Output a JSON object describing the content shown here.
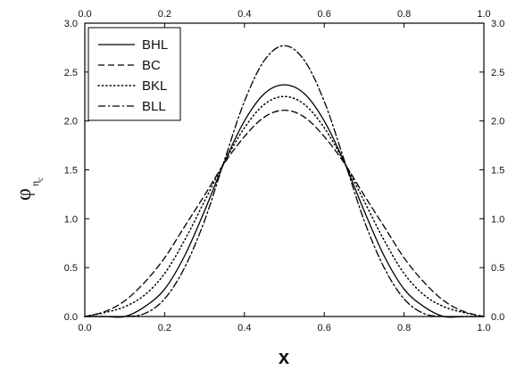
{
  "chart_data": {
    "type": "line",
    "title": "",
    "xlabel": "x",
    "ylabel": {
      "main": "φ",
      "sub": "η",
      "subsub": "c"
    },
    "xlim": [
      0.0,
      1.0
    ],
    "ylim": [
      0.0,
      3.0
    ],
    "xticks": [
      0.0,
      0.2,
      0.4,
      0.6,
      0.8,
      1.0
    ],
    "yticks": [
      0.0,
      0.5,
      1.0,
      1.5,
      2.0,
      2.5,
      3.0
    ],
    "xtick_labels": [
      "0.0",
      "0.2",
      "0.4",
      "0.6",
      "0.8",
      "1.0"
    ],
    "ytick_labels": [
      "0.0",
      "0.5",
      "1.0",
      "1.5",
      "2.0",
      "2.5",
      "3.0"
    ],
    "grid": false,
    "legend": {
      "position": "top-left"
    },
    "series": [
      {
        "name": "BHL",
        "style": "solid",
        "color": "#000000",
        "x": [
          0.0,
          0.05,
          0.1,
          0.15,
          0.2,
          0.25,
          0.3,
          0.35,
          0.4,
          0.45,
          0.5,
          0.55,
          0.6,
          0.65,
          0.7,
          0.75,
          0.8,
          0.85,
          0.9,
          0.95,
          1.0
        ],
        "y": [
          0.0,
          0.0,
          0.0,
          0.1,
          0.28,
          0.62,
          1.08,
          1.58,
          2.0,
          2.28,
          2.37,
          2.28,
          2.0,
          1.58,
          1.08,
          0.62,
          0.28,
          0.1,
          0.0,
          0.0,
          0.0
        ]
      },
      {
        "name": "BC",
        "style": "dashed",
        "color": "#000000",
        "x": [
          0.0,
          0.05,
          0.1,
          0.15,
          0.2,
          0.25,
          0.3,
          0.35,
          0.4,
          0.45,
          0.5,
          0.55,
          0.6,
          0.65,
          0.7,
          0.75,
          0.8,
          0.85,
          0.9,
          0.95,
          1.0
        ],
        "y": [
          0.0,
          0.05,
          0.16,
          0.35,
          0.6,
          0.92,
          1.24,
          1.57,
          1.84,
          2.04,
          2.11,
          2.04,
          1.84,
          1.57,
          1.24,
          0.92,
          0.6,
          0.35,
          0.16,
          0.05,
          0.0
        ]
      },
      {
        "name": "BKL",
        "style": "dotted",
        "color": "#000000",
        "x": [
          0.0,
          0.05,
          0.1,
          0.15,
          0.2,
          0.25,
          0.3,
          0.35,
          0.4,
          0.45,
          0.5,
          0.55,
          0.6,
          0.65,
          0.7,
          0.75,
          0.8,
          0.85,
          0.9,
          0.95,
          1.0
        ],
        "y": [
          0.0,
          0.04,
          0.1,
          0.22,
          0.44,
          0.78,
          1.18,
          1.58,
          1.93,
          2.17,
          2.25,
          2.17,
          1.93,
          1.58,
          1.18,
          0.78,
          0.44,
          0.22,
          0.1,
          0.04,
          0.0
        ]
      },
      {
        "name": "BLL",
        "style": "dashdot",
        "color": "#000000",
        "x": [
          0.0,
          0.05,
          0.1,
          0.15,
          0.2,
          0.25,
          0.3,
          0.35,
          0.4,
          0.45,
          0.5,
          0.55,
          0.6,
          0.65,
          0.7,
          0.75,
          0.8,
          0.85,
          0.9,
          0.95,
          1.0
        ],
        "y": [
          0.0,
          0.0,
          0.0,
          0.03,
          0.18,
          0.5,
          0.98,
          1.6,
          2.2,
          2.62,
          2.77,
          2.62,
          2.2,
          1.6,
          0.98,
          0.5,
          0.18,
          0.03,
          0.0,
          0.0,
          0.0
        ]
      }
    ]
  }
}
